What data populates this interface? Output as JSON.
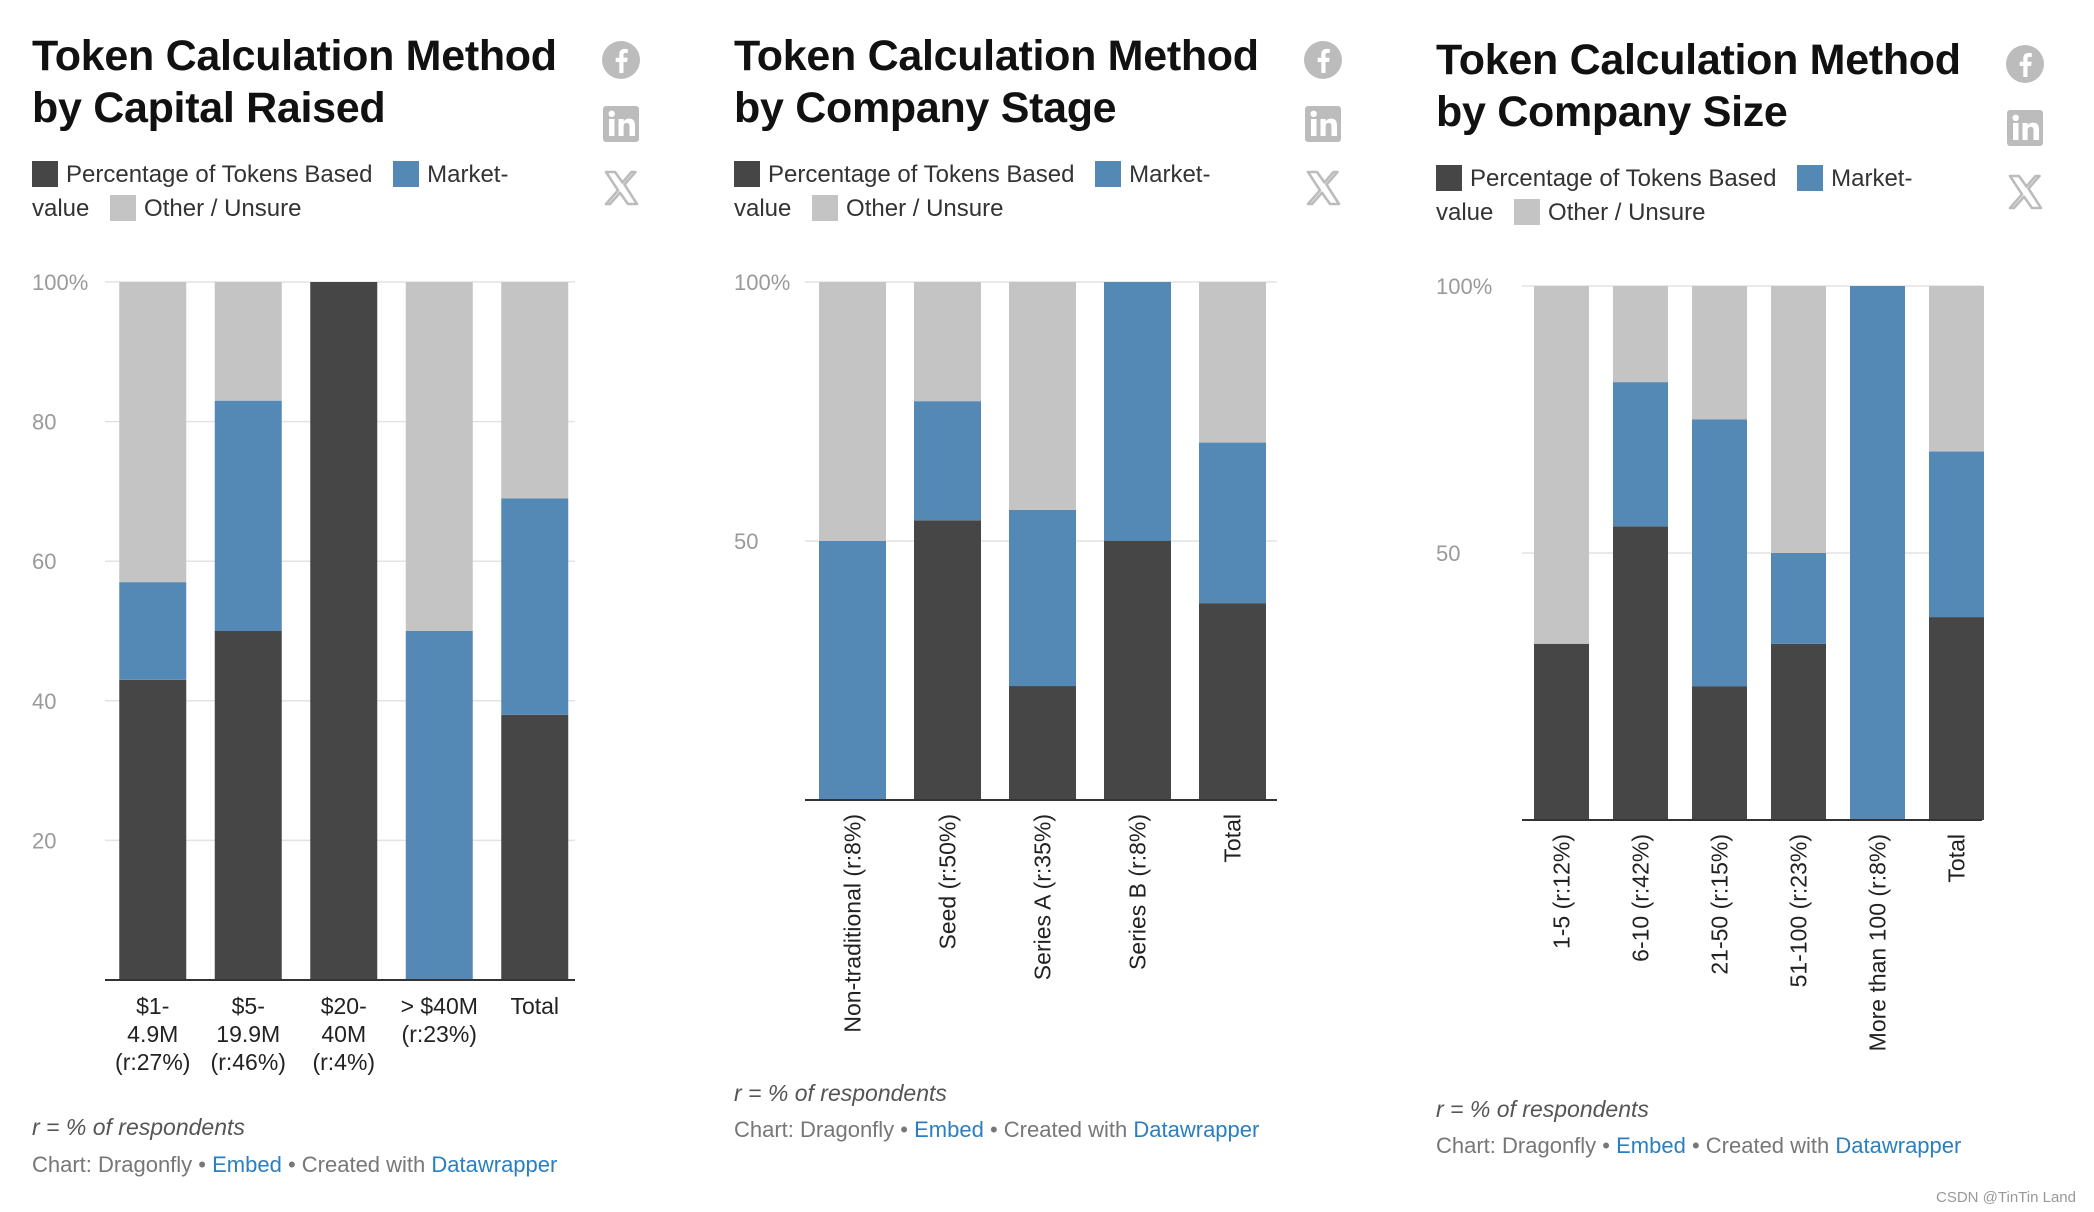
{
  "colors": {
    "percentage": "#464646",
    "market": "#5589b5",
    "other": "#c4c4c4",
    "link": "#2a7fc1"
  },
  "legend": {
    "items": [
      {
        "label": "Percentage of Tokens Based",
        "color": "#464646"
      },
      {
        "label": "Market-value",
        "color": "#5589b5"
      },
      {
        "label": "Other / Unsure",
        "color": "#c4c4c4"
      }
    ]
  },
  "social": {
    "icons": [
      "facebook-icon",
      "linkedin-icon",
      "x-icon"
    ]
  },
  "footer": {
    "note": "r = % of respondents",
    "chart_prefix": "Chart: Dragonfly",
    "sep1": " • ",
    "embed": "Embed",
    "sep2": " • Created with ",
    "datawrapper": "Datawrapper"
  },
  "watermark": "CSDN @TinTin Land",
  "chart_data": [
    {
      "type": "bar",
      "stacked": true,
      "title": "Token Calculation Method by Capital Raised",
      "categories": [
        "$1-\n4.9M\n(r:27%)",
        "$5-\n19.9M\n(r:46%)",
        "$20-\n40M\n(r:4%)",
        "> $40M\n(r:23%)",
        "Total"
      ],
      "series": [
        {
          "name": "Percentage of Tokens Based",
          "values": [
            43,
            50,
            100,
            0,
            38
          ]
        },
        {
          "name": "Market-value",
          "values": [
            14,
            33,
            0,
            50,
            31
          ]
        },
        {
          "name": "Other / Unsure",
          "values": [
            43,
            17,
            0,
            50,
            31
          ]
        }
      ],
      "yticks": [
        "20",
        "40",
        "60",
        "80",
        "100%"
      ],
      "ytick_values": [
        20,
        40,
        60,
        80,
        100
      ],
      "ylim": [
        0,
        100
      ],
      "grid": true,
      "xlabel_rotation": 0
    },
    {
      "type": "bar",
      "stacked": true,
      "title": "Token Calculation Method by Company Stage",
      "categories": [
        "Non-traditional (r:8%)",
        "Seed (r:50%)",
        "Series A (r:35%)",
        "Series B (r:8%)",
        "Total"
      ],
      "series": [
        {
          "name": "Percentage of Tokens Based",
          "values": [
            0,
            54,
            22,
            50,
            38
          ]
        },
        {
          "name": "Market-value",
          "values": [
            50,
            23,
            34,
            50,
            31
          ]
        },
        {
          "name": "Other / Unsure",
          "values": [
            50,
            23,
            44,
            0,
            31
          ]
        }
      ],
      "yticks": [
        "50",
        "100%"
      ],
      "ytick_values": [
        50,
        100
      ],
      "ylim": [
        0,
        100
      ],
      "grid": true,
      "xlabel_rotation": -90
    },
    {
      "type": "bar",
      "stacked": true,
      "title": "Token Calculation Method by Company Size",
      "categories": [
        "1-5 (r:12%)",
        "6-10 (r:42%)",
        "21-50 (r:15%)",
        "51-100 (r:23%)",
        "More than 100 (r:8%)",
        "Total"
      ],
      "series": [
        {
          "name": "Percentage of Tokens Based",
          "values": [
            33,
            55,
            25,
            33,
            0,
            38
          ]
        },
        {
          "name": "Market-value",
          "values": [
            0,
            27,
            50,
            17,
            100,
            31
          ]
        },
        {
          "name": "Other / Unsure",
          "values": [
            67,
            18,
            25,
            50,
            0,
            31
          ]
        }
      ],
      "yticks": [
        "50",
        "100%"
      ],
      "ytick_values": [
        50,
        100
      ],
      "ylim": [
        0,
        100
      ],
      "grid": true,
      "xlabel_rotation": -90
    }
  ]
}
